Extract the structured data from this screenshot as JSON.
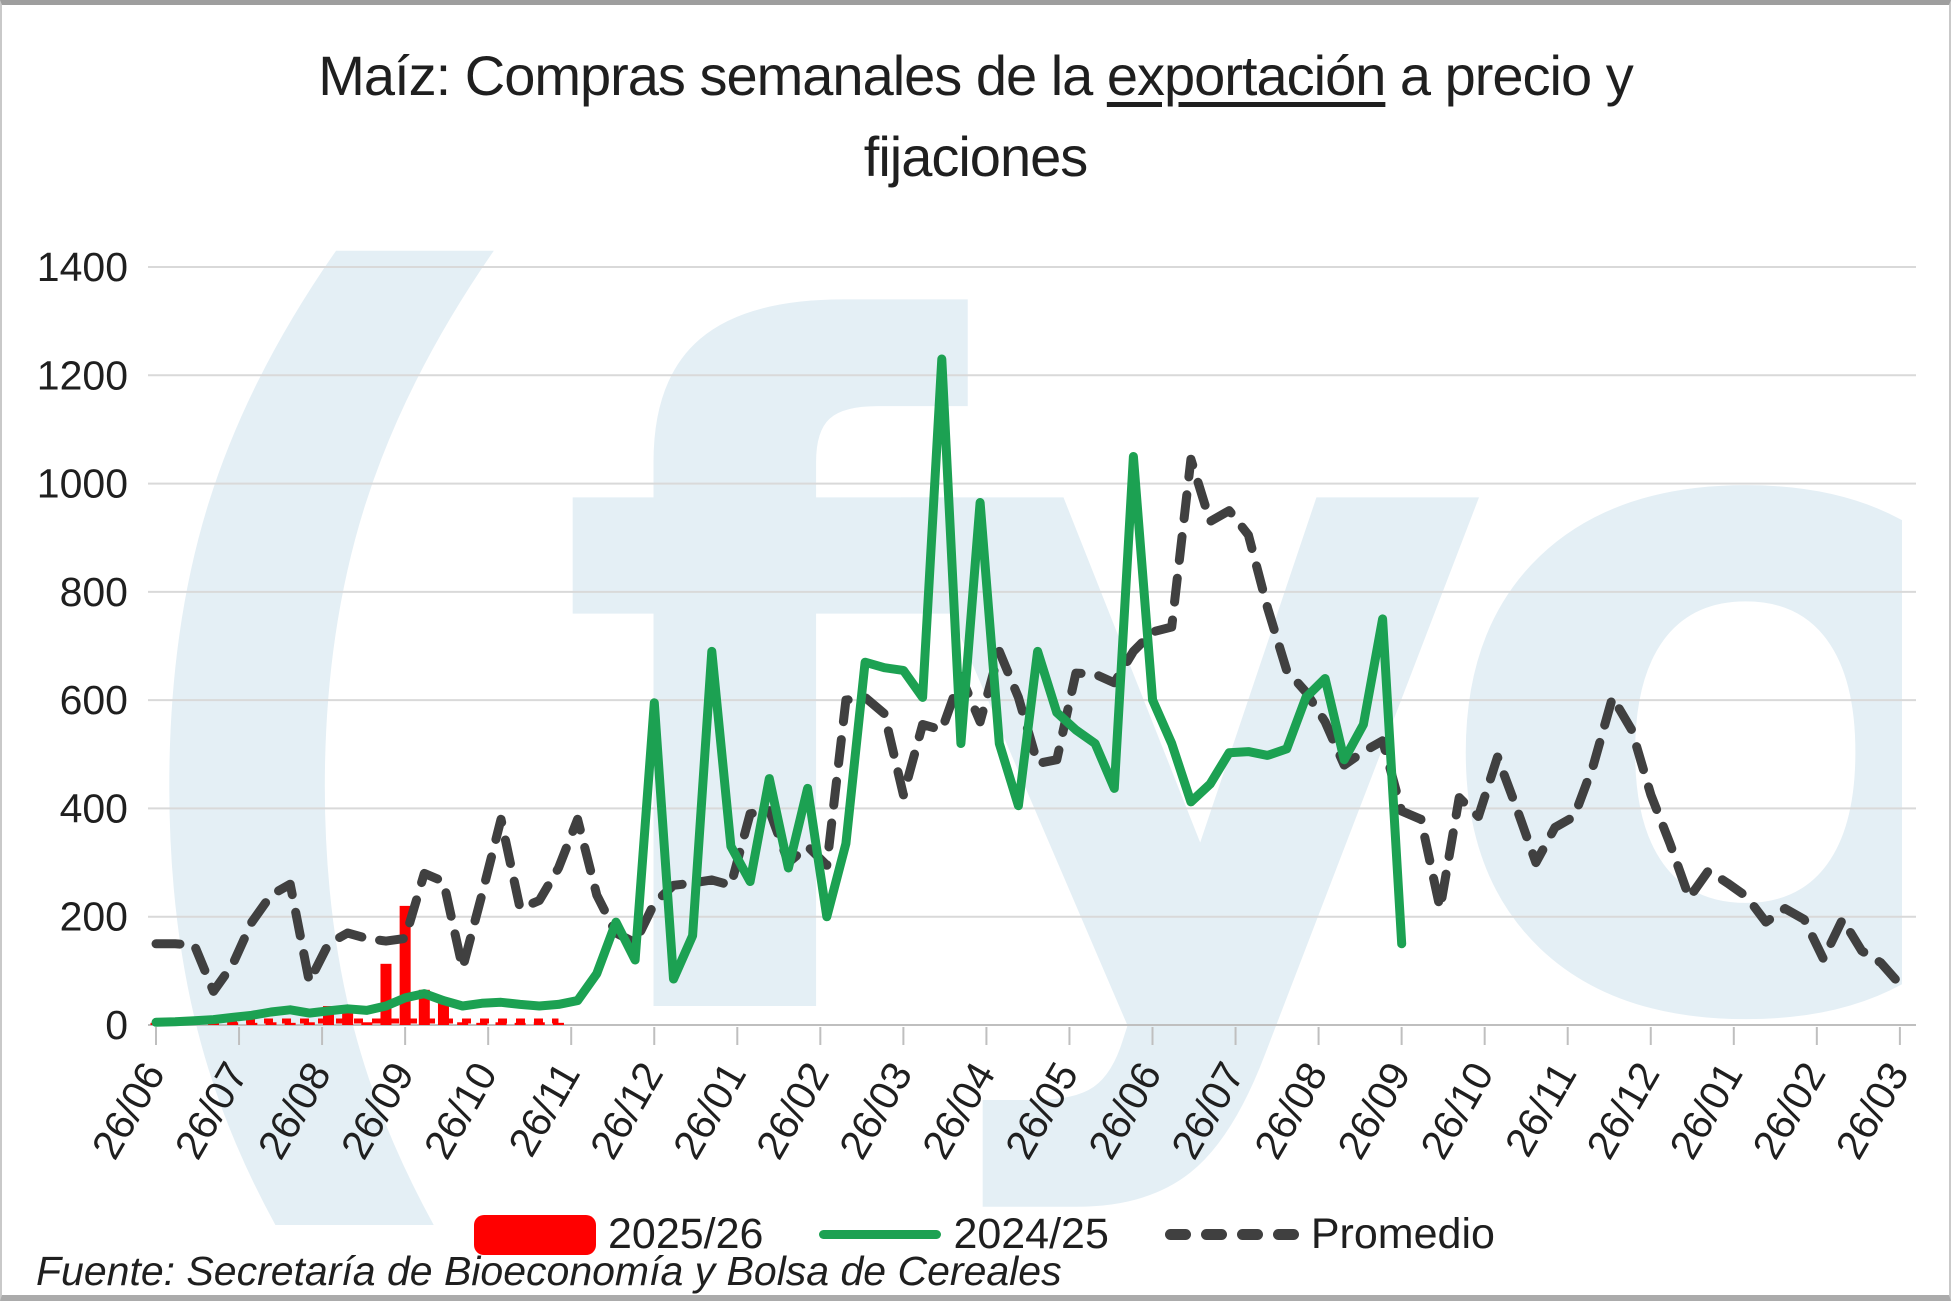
{
  "title": {
    "line1_pre": "Maíz: Compras semanales de la ",
    "line1_underlined": "exportación",
    "line1_post": " a precio y",
    "line2": "fijaciones"
  },
  "watermark": {
    "mark": "(",
    "text": "fyo",
    "color": "#e4eff5"
  },
  "source": {
    "text": "Fuente: Secretaría de Bioeconomía y Bolsa de Cereales"
  },
  "colors": {
    "grid": "#d9d9d9",
    "axis": "#bfbfbf",
    "text": "#1f1f1f",
    "bar_series": "#ff0000",
    "line_series": "#1ca152",
    "avg_series": "#404040"
  },
  "chart_data": {
    "type": "bar+line",
    "title": "Maíz: Compras semanales de la exportación a precio y fijaciones",
    "xlabel": "",
    "ylabel": "",
    "ylim": [
      0,
      1400
    ],
    "y_ticks": [
      0,
      200,
      400,
      600,
      800,
      1000,
      1200,
      1400
    ],
    "grid": "horizontal",
    "legend_position": "bottom",
    "x_unit": "weeks",
    "weeks_per_month_tick": 4.333,
    "x_tick_labels": [
      "26/06",
      "26/07",
      "26/08",
      "26/09",
      "26/10",
      "26/11",
      "26/12",
      "26/01",
      "26/02",
      "26/03",
      "26/04",
      "26/05",
      "26/06",
      "26/07",
      "26/08",
      "26/09",
      "26/10",
      "26/11",
      "26/12",
      "26/01",
      "26/02",
      "26/03"
    ],
    "series": [
      {
        "name": "2025/26",
        "type": "bar",
        "color": "#ff0000",
        "start_week": 0,
        "values": [
          4,
          4,
          5,
          4,
          5,
          4,
          5,
          4,
          5,
          35,
          35,
          5,
          113,
          220,
          65,
          40,
          5,
          4,
          5,
          4,
          5,
          4
        ]
      },
      {
        "name": "2024/25",
        "type": "line",
        "color": "#1ca152",
        "start_week": 0,
        "values": [
          5,
          6,
          8,
          10,
          14,
          18,
          24,
          28,
          22,
          26,
          30,
          27,
          35,
          50,
          58,
          45,
          35,
          40,
          42,
          38,
          35,
          38,
          45,
          95,
          190,
          120,
          595,
          85,
          165,
          690,
          330,
          265,
          455,
          290,
          437,
          200,
          335,
          670,
          660,
          655,
          605,
          1230,
          520,
          965,
          520,
          405,
          690,
          577,
          545,
          520,
          437,
          1050,
          600,
          520,
          412,
          445,
          503,
          505,
          498,
          510,
          605,
          640,
          490,
          555,
          750,
          150
        ]
      },
      {
        "name": "Promedio",
        "type": "line",
        "dashed": true,
        "color": "#404040",
        "start_week": 0,
        "values": [
          150,
          150,
          148,
          62,
          112,
          190,
          240,
          260,
          80,
          150,
          170,
          160,
          155,
          160,
          280,
          265,
          105,
          240,
          380,
          215,
          230,
          290,
          380,
          240,
          170,
          152,
          225,
          258,
          262,
          268,
          258,
          390,
          397,
          300,
          330,
          295,
          600,
          605,
          575,
          425,
          555,
          545,
          644,
          560,
          690,
          605,
          483,
          490,
          650,
          648,
          632,
          690,
          726,
          735,
          1045,
          930,
          950,
          905,
          770,
          655,
          615,
          560,
          480,
          505,
          525,
          395,
          380,
          215,
          420,
          385,
          495,
          400,
          300,
          365,
          385,
          480,
          605,
          545,
          425,
          335,
          235,
          285,
          262,
          237,
          190,
          215,
          195,
          122,
          195,
          137,
          115,
          75
        ]
      }
    ]
  }
}
